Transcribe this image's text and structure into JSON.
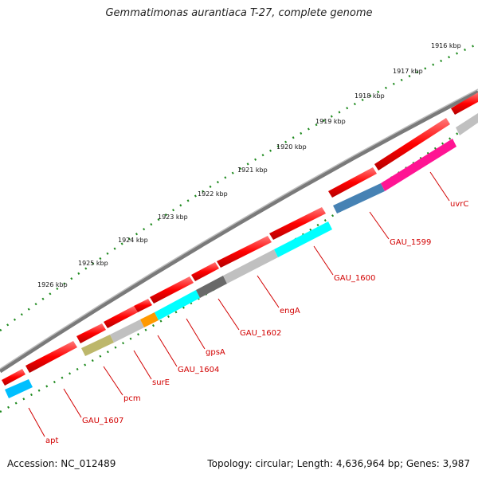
{
  "title": "Gemmatimonas aurantiaca T-27, complete genome",
  "accession": "Accession: NC_012489",
  "topology": "Topology: circular; Length: 4,636,964 bp; Genes: 3,987",
  "kbp_ticks": [
    "1916 kbp",
    "1917 kbp",
    "1918 kbp",
    "1919 kbp",
    "1920 kbp",
    "1921 kbp",
    "1922 kbp",
    "1923 kbp",
    "1924 kbp",
    "1925 kbp",
    "1926 kbp"
  ],
  "genes": [
    "uvrC",
    "GAU_1599",
    "GAU_1600",
    "engA",
    "GAU_1602",
    "gpsA",
    "GAU_1604",
    "surE",
    "pcm",
    "GAU_1607",
    "apt"
  ],
  "colors": {
    "cds": "#ff0000",
    "backbone": "#808080",
    "tick": "#1e8a1e",
    "label": "#d20000"
  },
  "cog_colors": [
    "#ff1493",
    "#4682b4",
    "#00ffff",
    "#c0c0c0",
    "#696969",
    "#00ffff",
    "#ff9900",
    "#c0c0c0",
    "#bdb76b",
    "#00bfff"
  ]
}
